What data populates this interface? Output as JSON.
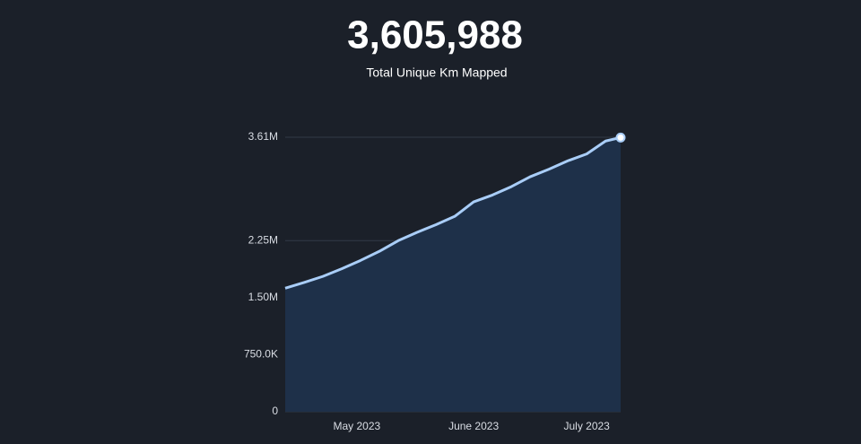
{
  "headline": {
    "value": "3,605,988",
    "caption": "Total Unique Km Mapped"
  },
  "chart_data": {
    "type": "area",
    "x": [
      0,
      5,
      10,
      15,
      20,
      25,
      30,
      35,
      40,
      45,
      50,
      55,
      60,
      65,
      70,
      75,
      80,
      85,
      89
    ],
    "values": [
      1625000,
      1700000,
      1780000,
      1880000,
      1990000,
      2110000,
      2250000,
      2360000,
      2460000,
      2570000,
      2760000,
      2850000,
      2960000,
      3090000,
      3190000,
      3300000,
      3390000,
      3560000,
      3605988
    ],
    "color": "#a9cdf7",
    "fill": "#1e3049",
    "xlim": [
      0,
      89
    ],
    "xticks": [
      {
        "value": 19,
        "label": "May 2023"
      },
      {
        "value": 50,
        "label": "June 2023"
      },
      {
        "value": 80,
        "label": "July 2023"
      }
    ],
    "ylim": [
      0,
      3610000
    ],
    "yticks": [
      0,
      {
        "value": 750000,
        "label": "750.0K"
      },
      {
        "value": 1500000,
        "label": "1.50M"
      },
      {
        "value": 2250000,
        "label": "2.25M"
      },
      {
        "value": 3610000,
        "label": "3.61M"
      }
    ],
    "grid": true
  }
}
